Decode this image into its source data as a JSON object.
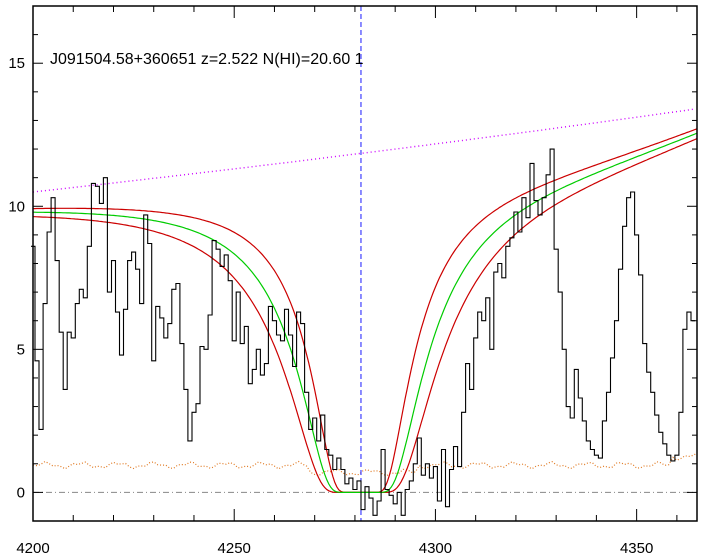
{
  "chart_data": {
    "type": "line",
    "title": "J091504.58+360651 z=2.522 N(HI)=20.60 1",
    "xlabel": "",
    "ylabel": "",
    "xlim": [
      4200,
      4365
    ],
    "ylim": [
      -1,
      17
    ],
    "grid": false,
    "legend": "none",
    "x_ticks": [
      "4200",
      "4250",
      "4300",
      "4350"
    ],
    "y_ticks": [
      "0",
      "5",
      "10",
      "15"
    ],
    "x_tick_values": [
      4200,
      4250,
      4300,
      4350
    ],
    "y_tick_values": [
      0,
      5,
      10,
      15
    ],
    "absorber_center": 4281.5,
    "colors": {
      "spectrum": "#000000",
      "fit": "#00cc00",
      "fit_bounds": "#cc0000",
      "continuum": "#cc00ff",
      "error": "#e07820",
      "zero_line": "#888888",
      "center_line": "#1a1aff"
    },
    "spectrum": {
      "x": [
        4200,
        4201,
        4202,
        4203,
        4204,
        4205,
        4206,
        4207,
        4208,
        4209,
        4210,
        4211,
        4212,
        4213,
        4214,
        4215,
        4216,
        4217,
        4218,
        4219,
        4220,
        4221,
        4222,
        4223,
        4224,
        4225,
        4226,
        4227,
        4228,
        4229,
        4230,
        4231,
        4232,
        4233,
        4234,
        4235,
        4236,
        4237,
        4238,
        4239,
        4240,
        4241,
        4242,
        4243,
        4244,
        4245,
        4246,
        4247,
        4248,
        4249,
        4250,
        4251,
        4252,
        4253,
        4254,
        4255,
        4256,
        4257,
        4258,
        4259,
        4260,
        4261,
        4262,
        4263,
        4264,
        4265,
        4266,
        4267,
        4268,
        4269,
        4270,
        4271,
        4272,
        4273,
        4274,
        4275,
        4276,
        4277,
        4278,
        4279,
        4280,
        4281,
        4282,
        4283,
        4284,
        4285,
        4286,
        4287,
        4288,
        4289,
        4290,
        4291,
        4292,
        4293,
        4294,
        4295,
        4296,
        4297,
        4298,
        4299,
        4300,
        4301,
        4302,
        4303,
        4304,
        4305,
        4306,
        4307,
        4308,
        4309,
        4310,
        4311,
        4312,
        4313,
        4314,
        4315,
        4316,
        4317,
        4318,
        4319,
        4320,
        4321,
        4322,
        4323,
        4324,
        4325,
        4326,
        4327,
        4328,
        4329,
        4330,
        4331,
        4332,
        4333,
        4334,
        4335,
        4336,
        4337,
        4338,
        4339,
        4340,
        4341,
        4342,
        4343,
        4344,
        4345,
        4346,
        4347,
        4348,
        4349,
        4350,
        4351,
        4352,
        4353,
        4354,
        4355,
        4356,
        4357,
        4358,
        4359,
        4360,
        4361,
        4362,
        4363,
        4364
      ],
      "y": [
        8.6,
        4.6,
        2.2,
        6.6,
        9.1,
        10.3,
        8.1,
        5.6,
        3.6,
        5.6,
        5.4,
        6.6,
        7.1,
        6.8,
        8.6,
        10.8,
        10.7,
        10.1,
        11.0,
        7.0,
        8.1,
        6.3,
        4.8,
        6.4,
        8.1,
        8.4,
        7.8,
        6.6,
        9.7,
        8.7,
        4.6,
        6.5,
        6.1,
        5.4,
        5.9,
        7.1,
        7.3,
        5.2,
        3.6,
        1.8,
        2.8,
        3.1,
        5.1,
        5.0,
        6.2,
        8.8,
        8.5,
        7.9,
        8.3,
        7.4,
        5.3,
        7.0,
        5.2,
        5.8,
        3.8,
        4.3,
        5.0,
        4.1,
        4.5,
        6.5,
        6.0,
        5.5,
        5.3,
        6.4,
        5.5,
        4.4,
        6.3,
        5.9,
        3.5,
        2.2,
        2.6,
        1.8,
        2.7,
        1.5,
        1.3,
        0.8,
        1.2,
        0.8,
        0.3,
        0.5,
        0.1,
        0.4,
        -0.6,
        0.2,
        -0.2,
        -0.8,
        -0.3,
        1.5,
        0.1,
        -0.1,
        -0.4,
        0.0,
        -0.8,
        0.1,
        0.4,
        1.0,
        1.9,
        0.6,
        1.0,
        0.5,
        0.9,
        -0.3,
        1.5,
        -0.5,
        0.8,
        1.6,
        0.9,
        2.8,
        4.5,
        3.6,
        5.4,
        6.3,
        6.0,
        6.8,
        5.0,
        7.7,
        8.0,
        7.5,
        8.6,
        8.9,
        9.8,
        9.1,
        10.3,
        9.6,
        11.5,
        10.2,
        9.7,
        10.3,
        11.1,
        12.0,
        8.5,
        7.0,
        5.0,
        3.0,
        2.6,
        4.3,
        3.3,
        2.5,
        1.8,
        1.5,
        1.3,
        1.2,
        2.5,
        3.5,
        4.7,
        6.0,
        7.8,
        9.3,
        10.3,
        10.5,
        9.0,
        7.6,
        5.2,
        4.2,
        3.5,
        2.7,
        2.1,
        1.7,
        1.3,
        1.1,
        1.3,
        2.8,
        5.7,
        6.3,
        6.0
      ]
    }
  }
}
